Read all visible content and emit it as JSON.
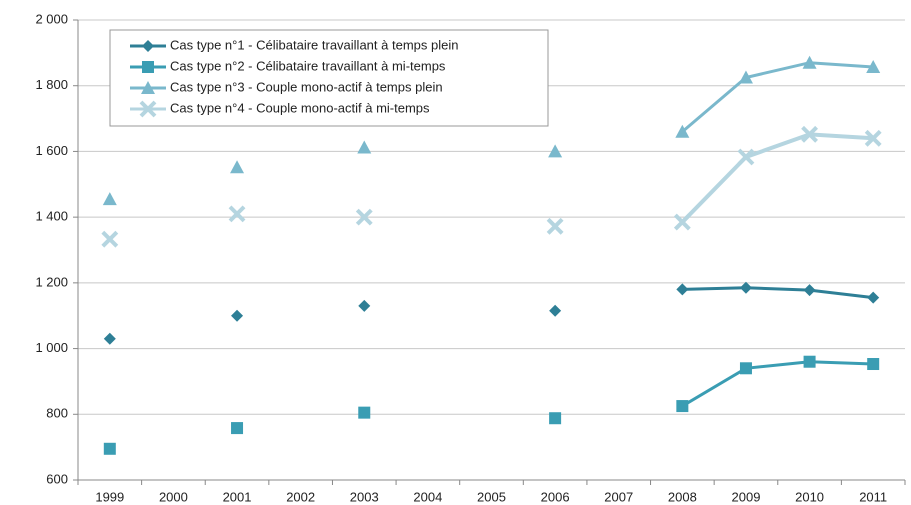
{
  "chart_data": {
    "type": "line",
    "categories": [
      "1999",
      "2000",
      "2001",
      "2002",
      "2003",
      "2004",
      "2005",
      "2006",
      "2007",
      "2008",
      "2009",
      "2010",
      "2011"
    ],
    "series": [
      {
        "name": "Cas type n°1 - Célibataire travaillant à temps plein",
        "color": "#2e7f96",
        "marker": "diamond",
        "values": [
          1030,
          null,
          1100,
          null,
          1130,
          null,
          null,
          1115,
          null,
          1180,
          1185,
          1178,
          1155
        ]
      },
      {
        "name": "Cas type n°2 - Célibataire travaillant à mi-temps",
        "color": "#3a9db3",
        "marker": "square",
        "values": [
          695,
          null,
          758,
          null,
          805,
          null,
          null,
          788,
          null,
          825,
          940,
          960,
          953
        ]
      },
      {
        "name": "Cas type n°3 - Couple mono-actif à temps plein",
        "color": "#7ab8cc",
        "marker": "triangle",
        "values": [
          1455,
          null,
          1552,
          null,
          1612,
          null,
          null,
          1600,
          null,
          1660,
          1825,
          1870,
          1857
        ]
      },
      {
        "name": "Cas type n°4 - Couple mono-actif à mi-temps",
        "color": "#b5d5e0",
        "marker": "cross",
        "values": [
          1333,
          null,
          1410,
          null,
          1400,
          null,
          null,
          1372,
          null,
          1385,
          1583,
          1652,
          1640
        ]
      }
    ],
    "ylim": [
      600,
      2000
    ],
    "yticks": [
      600,
      800,
      {
        "value": 1000,
        "label": "1 000"
      },
      {
        "value": 1200,
        "label": "1 200"
      },
      {
        "value": 1400,
        "label": "1 400"
      },
      {
        "value": 1600,
        "label": "1 600"
      },
      {
        "value": 1800,
        "label": "1 800"
      },
      {
        "value": 2000,
        "label": "2 000"
      }
    ],
    "grid": true,
    "legend": "top-left"
  }
}
